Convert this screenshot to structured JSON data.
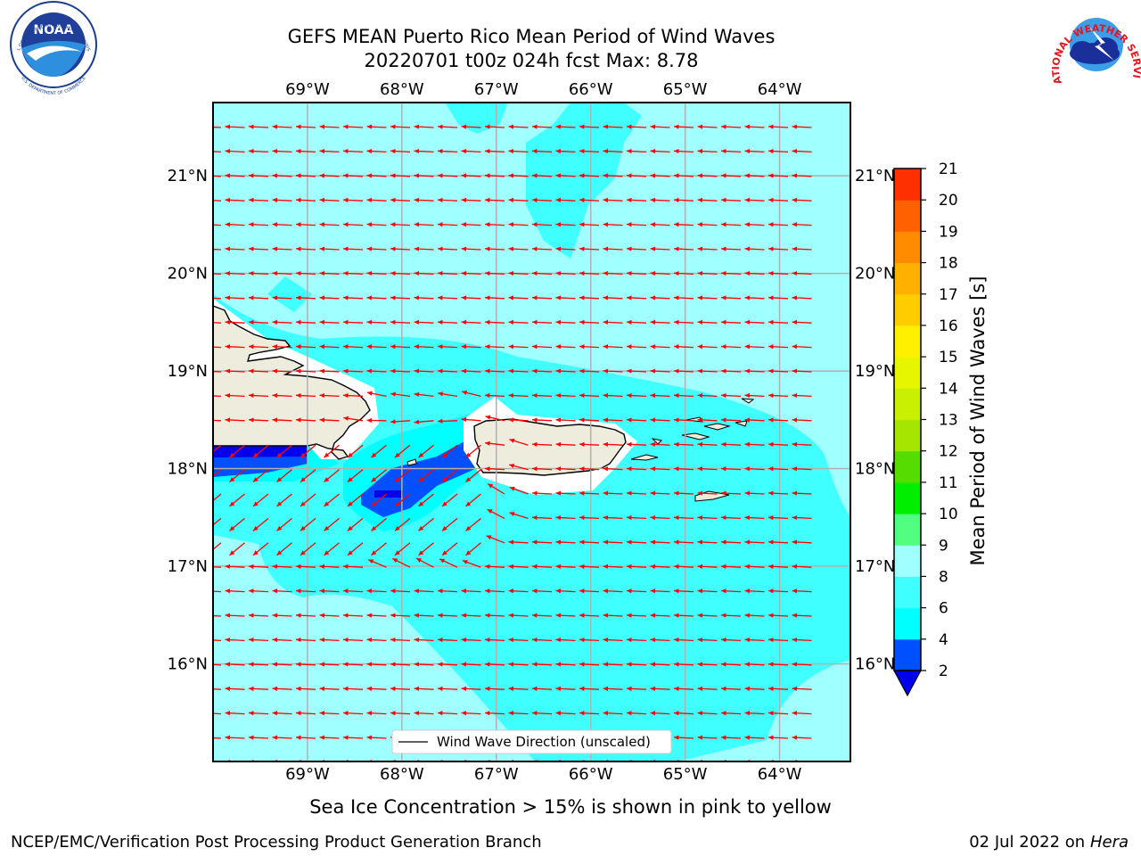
{
  "title": {
    "line1": "GEFS MEAN Puerto Rico Mean Period of Wind Waves",
    "line2": "20220701 t00z 024h fcst   Max: 8.78"
  },
  "map": {
    "lon_labels": [
      "69°W",
      "68°W",
      "67°W",
      "66°W",
      "65°W",
      "64°W"
    ],
    "lat_labels": [
      "21°N",
      "20°N",
      "19°N",
      "18°N",
      "17°N",
      "16°N"
    ],
    "lon_values": [
      -69,
      -68,
      -67,
      -66,
      -65,
      -64
    ],
    "lat_values": [
      21,
      20,
      19,
      18,
      17,
      16
    ],
    "extent": {
      "lon_min": -70.0,
      "lon_max": -63.25,
      "lat_min": 15.0,
      "lat_max": 21.75
    },
    "arrow_color": "#ff0000",
    "land_color": "#eeecdc",
    "legend_label": "Wind Wave Direction (unscaled)"
  },
  "colorbar": {
    "label": "Mean Period of Wind Waves [s]",
    "ticks": [
      "2",
      "4",
      "6",
      "8",
      "9",
      "10",
      "11",
      "12",
      "13",
      "14",
      "15",
      "16",
      "17",
      "18",
      "19",
      "20",
      "21"
    ],
    "colors": [
      "#0050ff",
      "#00ffff",
      "#40ffff",
      "#a0ffff",
      "#50ff80",
      "#00ee00",
      "#55dd00",
      "#a5e600",
      "#c8f000",
      "#e6f500",
      "#fff000",
      "#ffcc00",
      "#ffb000",
      "#ff8c00",
      "#ff6000",
      "#ff3000",
      "#ff0000"
    ],
    "extend_color": "#0000ee"
  },
  "footer": {
    "note": "Sea Ice Concentration > 15% is shown in pink to yellow",
    "left": "NCEP/EMC/Verification Post Processing Product Generation Branch",
    "right_date": "02 Jul 2022 on ",
    "right_machine": "Hera"
  },
  "logos": {
    "noaa_text": "NOAA",
    "noaa_ring_top": "NATIONAL OCEANIC AND ATMOSPHERIC ADMINISTRATION",
    "noaa_ring_bottom": "U.S. DEPARTMENT OF COMMERCE",
    "nws_ring": "NATIONAL WEATHER SERVICE"
  }
}
